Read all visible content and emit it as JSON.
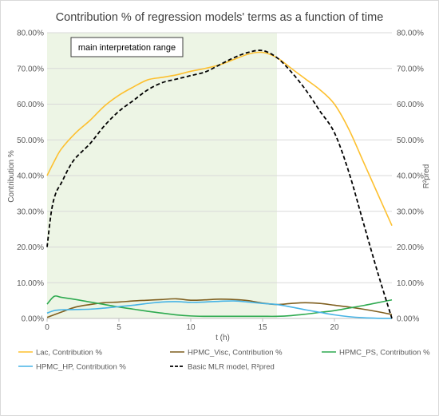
{
  "chart_data": {
    "type": "line",
    "title": "Contribution % of regression models' terms as a function of time",
    "xlabel": "t (h)",
    "ylabel": "Contribution %",
    "y2label": "R²pred",
    "xlim": [
      0,
      24
    ],
    "xticks": [
      0,
      5,
      10,
      15,
      20
    ],
    "ylim": [
      0,
      80
    ],
    "yticks": [
      "0.00%",
      "10.00%",
      "20.00%",
      "30.00%",
      "40.00%",
      "50.00%",
      "60.00%",
      "70.00%",
      "80.00%"
    ],
    "y2ticks": [
      "0.00%",
      "10.00%",
      "20.00%",
      "30.00%",
      "40.00%",
      "50.00%",
      "60.00%",
      "70.00%",
      "80.00%"
    ],
    "grid": true,
    "legend_position": "bottom",
    "annotation": {
      "label": "main interpretation range",
      "x_range": [
        0,
        16
      ]
    },
    "series": [
      {
        "name": "Lac, Contribution %",
        "color": "#fdc02f",
        "dash": "solid",
        "x": [
          0,
          0.5,
          1,
          2,
          3,
          4,
          5,
          6,
          7,
          8,
          9,
          10,
          11,
          12,
          13,
          14,
          15,
          16,
          17,
          18,
          19,
          20,
          21,
          22,
          23,
          24
        ],
        "values": [
          40,
          44,
          47.5,
          52,
          55.5,
          59.5,
          62.5,
          64.8,
          66.8,
          67.5,
          68.2,
          69.2,
          70,
          71,
          72.5,
          74,
          74.5,
          73,
          70,
          67,
          64,
          60,
          53,
          44,
          35,
          26
        ]
      },
      {
        "name": "HPMC_Visc, Contribution %",
        "color": "#7f5f1f",
        "dash": "solid",
        "x": [
          0,
          1,
          2,
          3,
          4,
          5,
          6,
          7,
          8,
          9,
          10,
          11,
          12,
          13,
          14,
          15,
          16,
          17,
          18,
          19,
          20,
          21,
          22,
          23,
          24
        ],
        "values": [
          0.3,
          1.8,
          3.2,
          3.9,
          4.4,
          4.6,
          4.9,
          5.1,
          5.3,
          5.5,
          5.1,
          5.2,
          5.4,
          5.3,
          5,
          4.3,
          3.9,
          4.2,
          4.4,
          4.2,
          3.7,
          3.2,
          2.6,
          1.9,
          1.1
        ]
      },
      {
        "name": "HPMC_PS, Contribution %",
        "color": "#2eaa50",
        "dash": "solid",
        "x": [
          0,
          0.5,
          1,
          2,
          3,
          4,
          5,
          6,
          7,
          8,
          9,
          10,
          11,
          12,
          13,
          14,
          15,
          16,
          17,
          18,
          19,
          20,
          21,
          22,
          23,
          24
        ],
        "values": [
          4,
          6.2,
          5.9,
          5.3,
          4.6,
          3.9,
          3.2,
          2.6,
          2,
          1.5,
          1,
          0.7,
          0.6,
          0.6,
          0.6,
          0.6,
          0.6,
          0.6,
          0.8,
          1.2,
          1.7,
          2.2,
          2.9,
          3.6,
          4.4,
          5.2
        ]
      },
      {
        "name": "HPMC_HP, Contribution %",
        "color": "#47b4e6",
        "dash": "solid",
        "x": [
          0,
          0.5,
          1,
          2,
          3,
          4,
          5,
          6,
          7,
          8,
          9,
          10,
          11,
          12,
          13,
          14,
          15,
          16,
          17,
          18,
          19,
          20,
          21,
          22,
          23,
          24
        ],
        "values": [
          1.5,
          2.2,
          2.4,
          2.5,
          2.6,
          2.9,
          3.3,
          3.7,
          4.2,
          4.6,
          4.7,
          4.5,
          4.6,
          4.8,
          4.9,
          4.6,
          4.2,
          3.9,
          3.2,
          2.4,
          1.7,
          1,
          0.5,
          0.2,
          0.05,
          0
        ]
      },
      {
        "name": "Basic MLR model, R²pred",
        "color": "#000000",
        "dash": "dashed",
        "x": [
          0,
          0.3,
          0.6,
          1,
          1.5,
          2,
          3,
          4,
          5,
          6,
          7,
          8,
          9,
          10,
          11,
          12,
          13,
          14,
          15,
          16,
          17,
          18,
          19,
          20,
          21,
          22,
          23,
          24
        ],
        "values": [
          20,
          30,
          35,
          38,
          42,
          45,
          49,
          54,
          58,
          61,
          64,
          66,
          67,
          68,
          69,
          71,
          73,
          74.5,
          75,
          73,
          69,
          64,
          58,
          52,
          41,
          27,
          13,
          0
        ]
      }
    ]
  }
}
